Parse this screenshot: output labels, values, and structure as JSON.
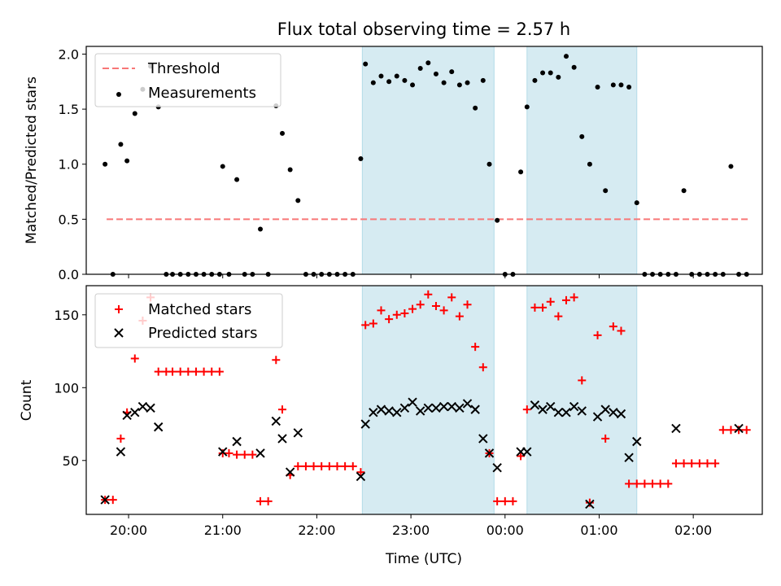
{
  "chart_data": [
    {
      "type": "scatter",
      "title": "Flux total observing time = 2.57 h",
      "xlabel": "",
      "ylabel": "Matched/Predicted stars",
      "ylim": [
        0,
        2.07
      ],
      "yticks": [
        0.0,
        0.5,
        1.0,
        1.5,
        2.0
      ],
      "ytick_labels": [
        "0.0",
        "0.5",
        "1.0",
        "1.5",
        "2.0"
      ],
      "grid": false,
      "legend": "top-left",
      "legend_entries": [
        "Threshold",
        "Measurements"
      ],
      "threshold": {
        "name": "Threshold",
        "y": 0.5,
        "x_start": "19:46",
        "x_end": "02:36",
        "color": "#f87777",
        "style": "dashed"
      },
      "shaded_spans": [
        [
          "22:29",
          "23:53"
        ],
        [
          "00:14",
          "01:24"
        ]
      ],
      "shade_color": "#add8e6",
      "series": [
        {
          "name": "Measurements",
          "color": "#000000",
          "marker": "dot",
          "x": [
            "19:45",
            "19:50",
            "19:55",
            "19:59",
            "20:04",
            "20:09",
            "20:14",
            "20:19",
            "20:24",
            "20:28",
            "20:33",
            "20:38",
            "20:43",
            "20:48",
            "20:53",
            "20:58",
            "21:00",
            "21:04",
            "21:09",
            "21:14",
            "21:19",
            "21:24",
            "21:29",
            "21:34",
            "21:38",
            "21:43",
            "21:48",
            "21:53",
            "21:58",
            "22:03",
            "22:08",
            "22:13",
            "22:18",
            "22:23",
            "22:28",
            "22:31",
            "22:36",
            "22:41",
            "22:46",
            "22:51",
            "22:56",
            "23:01",
            "23:06",
            "23:11",
            "23:16",
            "23:21",
            "23:26",
            "23:31",
            "23:36",
            "23:41",
            "23:46",
            "23:50",
            "23:55",
            "24:00",
            "24:05",
            "24:10",
            "24:14",
            "24:19",
            "24:24",
            "24:29",
            "24:34",
            "24:39",
            "24:44",
            "24:49",
            "24:54",
            "24:59",
            "25:04",
            "25:09",
            "25:14",
            "25:19",
            "25:24",
            "25:29",
            "25:34",
            "25:39",
            "25:44",
            "25:49",
            "25:54",
            "25:59",
            "26:04",
            "26:09",
            "26:14",
            "26:19",
            "26:24",
            "26:29",
            "26:34"
          ],
          "y": [
            1.0,
            0.0,
            1.18,
            1.03,
            1.46,
            1.68,
            1.89,
            1.52,
            0.0,
            0.0,
            0.0,
            0.0,
            0.0,
            0.0,
            0.0,
            0.0,
            0.98,
            0.0,
            0.86,
            0.0,
            0.0,
            0.41,
            0.0,
            1.53,
            1.28,
            0.95,
            0.67,
            0.0,
            0.0,
            0.0,
            0.0,
            0.0,
            0.0,
            0.0,
            1.05,
            1.91,
            1.74,
            1.8,
            1.75,
            1.8,
            1.76,
            1.72,
            1.87,
            1.92,
            1.82,
            1.74,
            1.84,
            1.72,
            1.74,
            1.51,
            1.76,
            1.0,
            0.49,
            0.0,
            0.0,
            0.93,
            1.52,
            1.76,
            1.83,
            1.83,
            1.79,
            1.98,
            1.88,
            1.25,
            1.0,
            1.7,
            0.76,
            1.72,
            1.72,
            1.7,
            0.65,
            0.0,
            0.0,
            0.0,
            0.0,
            0.0,
            0.76,
            0.0,
            0.0,
            0.0,
            0.0,
            0.0,
            0.98,
            0.0,
            0.0
          ]
        }
      ]
    },
    {
      "type": "scatter",
      "title": "",
      "xlabel": "Time (UTC)",
      "ylabel": "Count",
      "ylim": [
        13,
        170
      ],
      "yticks": [
        50,
        100,
        150
      ],
      "ytick_labels": [
        "50",
        "100",
        "150"
      ],
      "xlim": [
        "19:33",
        "02:44"
      ],
      "xticks": [
        "20:00",
        "21:00",
        "22:00",
        "23:00",
        "00:00",
        "01:00",
        "02:00"
      ],
      "grid": false,
      "legend": "top-left",
      "legend_entries": [
        "Matched stars",
        "Predicted stars"
      ],
      "shaded_spans": [
        [
          "22:29",
          "23:53"
        ],
        [
          "00:14",
          "01:24"
        ]
      ],
      "series": [
        {
          "name": "Matched stars",
          "color": "#ff0000",
          "marker": "plus",
          "x": [
            "19:45",
            "19:50",
            "19:55",
            "19:59",
            "20:04",
            "20:09",
            "20:14",
            "20:19",
            "20:24",
            "20:28",
            "20:33",
            "20:38",
            "20:43",
            "20:48",
            "20:53",
            "20:58",
            "21:00",
            "21:04",
            "21:09",
            "21:14",
            "21:19",
            "21:24",
            "21:29",
            "21:34",
            "21:38",
            "21:43",
            "21:48",
            "21:53",
            "21:58",
            "22:03",
            "22:08",
            "22:13",
            "22:18",
            "22:23",
            "22:28",
            "22:31",
            "22:36",
            "22:41",
            "22:46",
            "22:51",
            "22:56",
            "23:01",
            "23:06",
            "23:11",
            "23:16",
            "23:21",
            "23:26",
            "23:31",
            "23:36",
            "23:41",
            "23:46",
            "23:50",
            "23:55",
            "24:00",
            "24:05",
            "24:10",
            "24:14",
            "24:19",
            "24:24",
            "24:29",
            "24:34",
            "24:39",
            "24:44",
            "24:49",
            "24:54",
            "24:59",
            "25:04",
            "25:09",
            "25:14",
            "25:19",
            "25:24",
            "25:29",
            "25:34",
            "25:39",
            "25:44",
            "25:49",
            "25:54",
            "25:59",
            "26:04",
            "26:09",
            "26:14",
            "26:19",
            "26:24",
            "26:29",
            "26:34"
          ],
          "y": [
            23,
            23,
            65,
            83,
            120,
            146,
            162,
            111,
            111,
            111,
            111,
            111,
            111,
            111,
            111,
            111,
            55,
            55,
            54,
            54,
            54,
            22,
            22,
            119,
            85,
            40,
            46,
            46,
            46,
            46,
            46,
            46,
            46,
            46,
            42,
            143,
            144,
            153,
            147,
            150,
            151,
            154,
            157,
            164,
            156,
            153,
            162,
            149,
            157,
            128,
            114,
            55,
            22,
            22,
            22,
            53,
            85,
            155,
            155,
            159,
            149,
            160,
            162,
            105,
            21,
            136,
            65,
            142,
            139,
            34,
            34,
            34,
            34,
            34,
            34,
            48,
            48,
            48,
            48,
            48,
            48,
            71,
            71,
            71,
            71
          ]
        },
        {
          "name": "Predicted stars",
          "color": "#000000",
          "marker": "x",
          "x": [
            "19:45",
            "19:55",
            "19:59",
            "20:04",
            "20:09",
            "20:14",
            "20:19",
            "21:00",
            "21:09",
            "21:24",
            "21:34",
            "21:38",
            "21:43",
            "21:48",
            "22:28",
            "22:31",
            "22:36",
            "22:41",
            "22:46",
            "22:51",
            "22:56",
            "23:01",
            "23:06",
            "23:11",
            "23:16",
            "23:21",
            "23:26",
            "23:31",
            "23:36",
            "23:41",
            "23:46",
            "23:50",
            "23:55",
            "24:10",
            "24:14",
            "24:19",
            "24:24",
            "24:29",
            "24:34",
            "24:39",
            "24:44",
            "24:49",
            "24:54",
            "24:59",
            "25:04",
            "25:09",
            "25:14",
            "25:19",
            "25:24",
            "25:49",
            "26:29"
          ],
          "y": [
            23,
            56,
            81,
            83,
            87,
            86,
            73,
            56,
            63,
            55,
            77,
            65,
            42,
            69,
            39,
            75,
            83,
            85,
            84,
            83,
            86,
            90,
            84,
            86,
            86,
            87,
            87,
            86,
            89,
            85,
            65,
            55,
            45,
            56,
            56,
            88,
            85,
            87,
            83,
            83,
            87,
            84,
            20,
            80,
            85,
            83,
            82,
            52,
            63,
            72,
            72
          ]
        }
      ]
    }
  ]
}
